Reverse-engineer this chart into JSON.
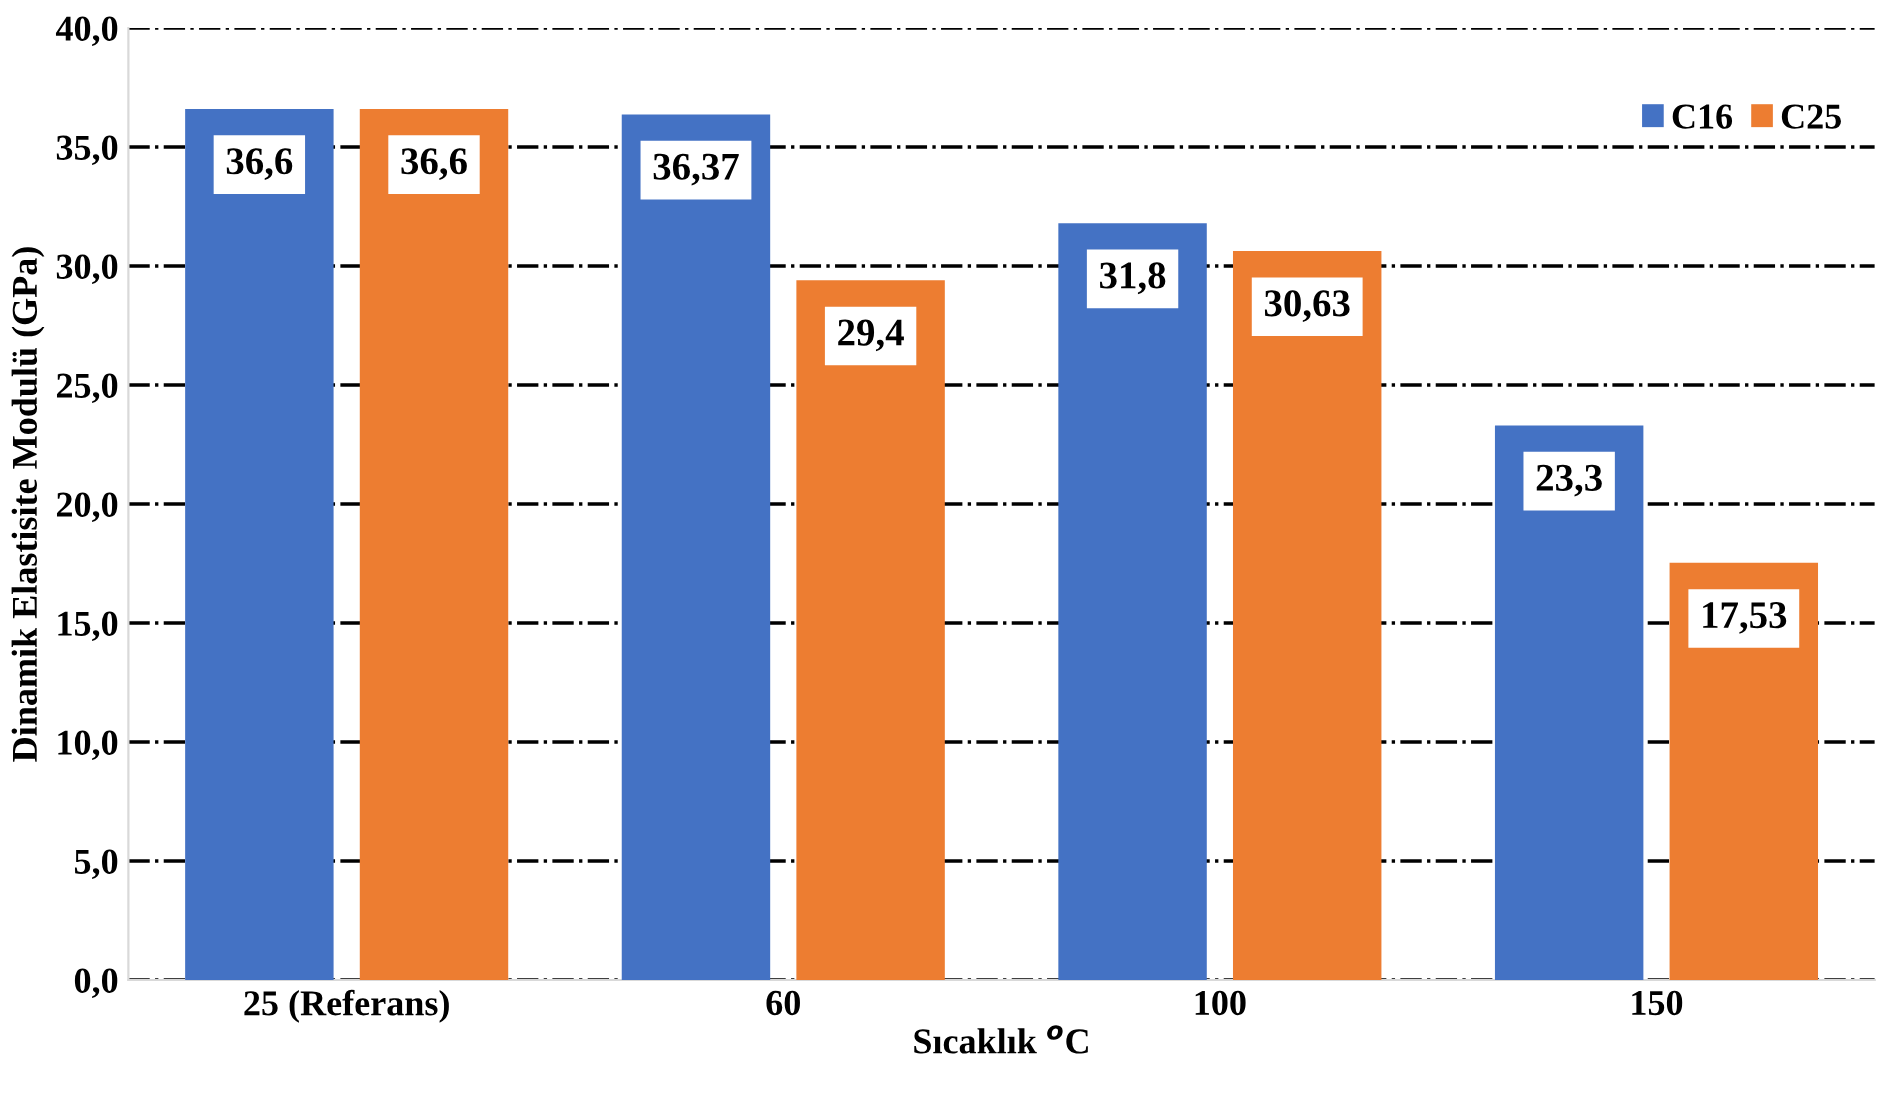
{
  "chart_data": {
    "type": "bar",
    "xlabel": "Sıcaklık $^{o}$C",
    "ylabel": "Dinamik Elastisite Modulü (GPa)",
    "categories": [
      "25 (Referans)",
      "60",
      "100",
      "150"
    ],
    "series": [
      {
        "name": "C16",
        "color": "#4472c4",
        "values": [
          36.6,
          36.37,
          31.8,
          23.3
        ],
        "value_labels": [
          "36,6",
          "36,37",
          "31,8",
          "23,3"
        ]
      },
      {
        "name": "C25",
        "color": "#ed7d31",
        "values": [
          36.6,
          29.4,
          30.63,
          17.53
        ],
        "value_labels": [
          "36,6",
          "29,4",
          "30,63",
          "17,53"
        ]
      }
    ],
    "ylim": [
      0,
      40
    ],
    "yticks": [
      {
        "value": 0,
        "label": "0,0"
      },
      {
        "value": 5,
        "label": "5,0"
      },
      {
        "value": 10,
        "label": "10,0"
      },
      {
        "value": 15,
        "label": "15,0"
      },
      {
        "value": 20,
        "label": "20,0"
      },
      {
        "value": 25,
        "label": "25,0"
      },
      {
        "value": 30,
        "label": "30,0"
      },
      {
        "value": 35,
        "label": "35,0"
      },
      {
        "value": 40,
        "label": "40,0"
      }
    ],
    "grid": "y",
    "legend": "top right"
  }
}
